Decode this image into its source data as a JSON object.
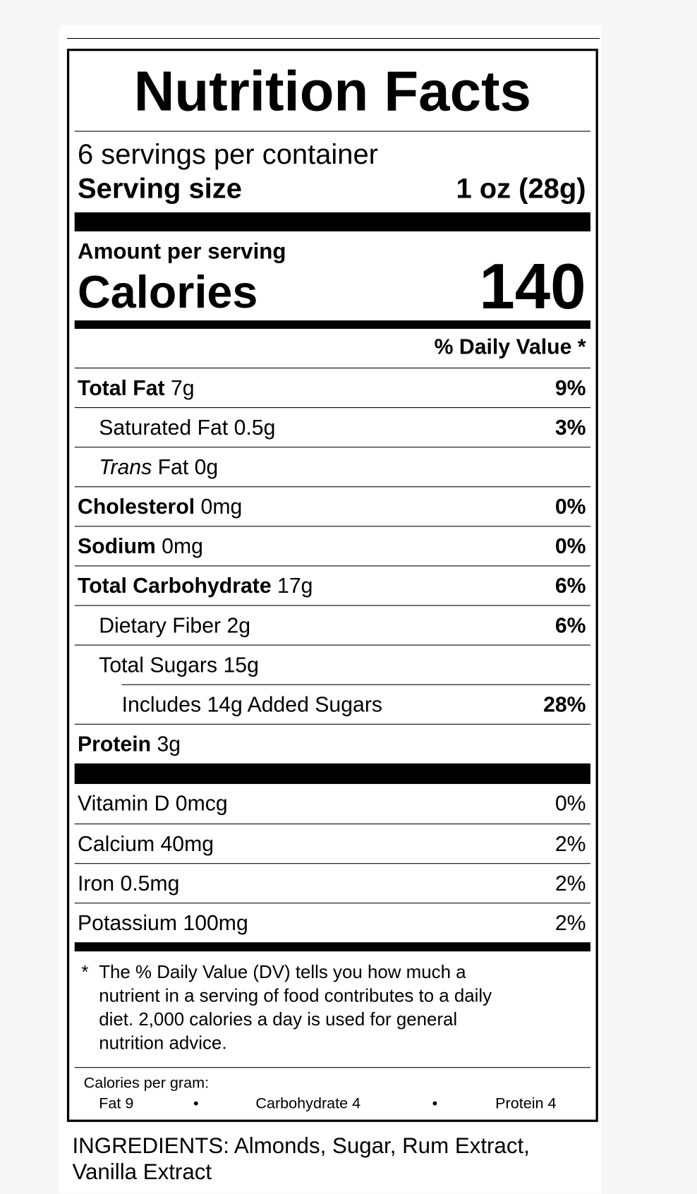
{
  "header": {
    "title": "Nutrition Facts",
    "servings": "6 servings per container",
    "serving_size_label": "Serving size",
    "serving_size_value": "1 oz (28g)"
  },
  "calories": {
    "amount_per_serving": "Amount per serving",
    "label": "Calories",
    "value": "140"
  },
  "daily_value_header": "% Daily Value *",
  "nutrients": [
    {
      "name": "Total Fat",
      "amount": "7g",
      "dv": "9%"
    },
    {
      "name": "Saturated Fat 0.5g",
      "dv": "3%"
    },
    {
      "name_italic": "Trans",
      "name": "Fat 0g"
    },
    {
      "name": "Cholesterol",
      "amount": "0mg",
      "dv": "0%"
    },
    {
      "name": "Sodium",
      "amount": "0mg",
      "dv": "0%"
    },
    {
      "name": "Total Carbohydrate",
      "amount": "17g",
      "dv": "6%"
    },
    {
      "name": "Dietary Fiber 2g",
      "dv": "6%"
    },
    {
      "name": "Total Sugars 15g"
    },
    {
      "name": "Includes 14g Added Sugars",
      "dv": "28%"
    },
    {
      "name": "Protein",
      "amount": "3g"
    }
  ],
  "vitamins": [
    {
      "name": "Vitamin D 0mcg",
      "dv": "0%"
    },
    {
      "name": "Calcium 40mg",
      "dv": "2%"
    },
    {
      "name": "Iron 0.5mg",
      "dv": "2%"
    },
    {
      "name": "Potassium 100mg",
      "dv": "2%"
    }
  ],
  "footnote": {
    "asterisk": "*",
    "lines": [
      "The % Daily Value (DV) tells you how much a",
      "nutrient in a serving of food contributes to a daily",
      "diet. 2,000 calories a day is used for general",
      "nutrition advice."
    ]
  },
  "calories_per_gram": {
    "title": "Calories per gram:",
    "items": [
      "Fat 9",
      "Carbohydrate 4",
      "Protein 4"
    ],
    "separator": "•"
  },
  "ingredients": [
    "INGREDIENTS: Almonds, Sugar, Rum Extract,",
    "Vanilla Extract"
  ]
}
